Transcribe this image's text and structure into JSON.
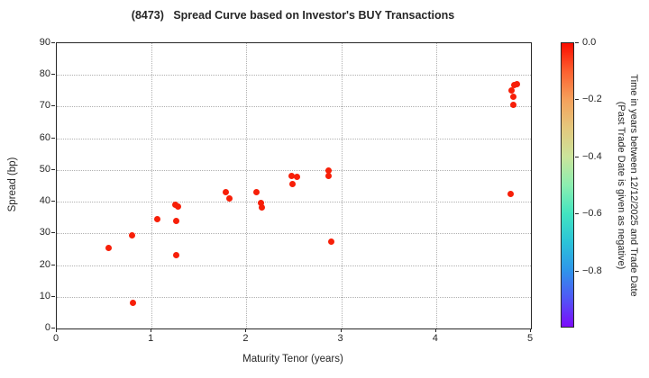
{
  "chart_data": {
    "type": "scatter",
    "title": "(8473)   Spread Curve based on Investor's BUY Transactions",
    "xlabel": "Maturity Tenor (years)",
    "ylabel": "Spread (bp)",
    "xlim": [
      0,
      5
    ],
    "ylim": [
      0,
      90
    ],
    "x_ticks": [
      0,
      1,
      2,
      3,
      4,
      5
    ],
    "y_ticks": [
      0,
      10,
      20,
      30,
      40,
      50,
      60,
      70,
      80,
      90
    ],
    "grid": true,
    "legend": "colorbar-right",
    "point_color": "#f71f08",
    "points": [
      {
        "x": 0.55,
        "y": 25.5
      },
      {
        "x": 0.79,
        "y": 29.5
      },
      {
        "x": 0.8,
        "y": 8.0
      },
      {
        "x": 1.06,
        "y": 34.5
      },
      {
        "x": 1.25,
        "y": 39.0
      },
      {
        "x": 1.28,
        "y": 38.6
      },
      {
        "x": 1.26,
        "y": 34.0
      },
      {
        "x": 1.26,
        "y": 23.0
      },
      {
        "x": 1.78,
        "y": 43.0
      },
      {
        "x": 1.82,
        "y": 41.0
      },
      {
        "x": 2.11,
        "y": 43.0
      },
      {
        "x": 2.15,
        "y": 39.5
      },
      {
        "x": 2.16,
        "y": 38.3
      },
      {
        "x": 2.48,
        "y": 48.0
      },
      {
        "x": 2.53,
        "y": 47.7
      },
      {
        "x": 2.49,
        "y": 45.5
      },
      {
        "x": 2.87,
        "y": 49.7
      },
      {
        "x": 2.87,
        "y": 48.2
      },
      {
        "x": 2.89,
        "y": 27.5
      },
      {
        "x": 4.79,
        "y": 42.5
      },
      {
        "x": 4.81,
        "y": 70.5
      },
      {
        "x": 4.81,
        "y": 73.0
      },
      {
        "x": 4.8,
        "y": 75.0
      },
      {
        "x": 4.82,
        "y": 76.8
      },
      {
        "x": 4.85,
        "y": 77.2
      }
    ],
    "colorbar": {
      "label_line1": "Time in years between 12/12/2025 and Trade Date",
      "label_line2": "(Past Trade Date is given as negative)",
      "range": [
        0.0,
        -1.0
      ],
      "ticks": [
        {
          "value": 0.0,
          "label": "0.0"
        },
        {
          "value": -0.2,
          "label": "−0.2"
        },
        {
          "value": -0.4,
          "label": "−0.4"
        },
        {
          "value": -0.6,
          "label": "−0.6"
        },
        {
          "value": -0.8,
          "label": "−0.8"
        }
      ],
      "gradient": [
        {
          "pos": 0.0,
          "color": "#fb0d00"
        },
        {
          "pos": 0.1,
          "color": "#fc6130"
        },
        {
          "pos": 0.2,
          "color": "#f5a15c"
        },
        {
          "pos": 0.3,
          "color": "#e4c87d"
        },
        {
          "pos": 0.4,
          "color": "#cbe49b"
        },
        {
          "pos": 0.5,
          "color": "#8ceeb0"
        },
        {
          "pos": 0.6,
          "color": "#43e5c0"
        },
        {
          "pos": 0.7,
          "color": "#2bc4d8"
        },
        {
          "pos": 0.8,
          "color": "#2e96ea"
        },
        {
          "pos": 0.9,
          "color": "#5057f6"
        },
        {
          "pos": 1.0,
          "color": "#7c0bfa"
        }
      ]
    }
  }
}
